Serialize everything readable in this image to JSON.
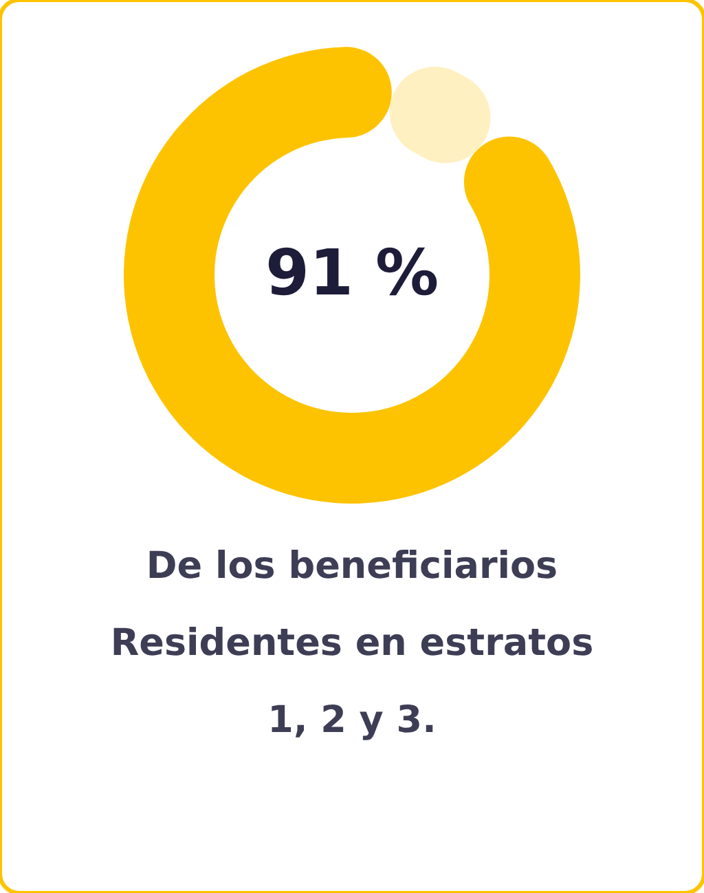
{
  "chart_data": {
    "type": "donut",
    "title": "De los beneficiarios\nResidentes en estratos\n1, 2 y 3.",
    "categories": [
      null,
      null
    ],
    "values": [
      91,
      9
    ],
    "colors": [
      "#fdc300",
      "#fff0c2"
    ],
    "value_labels": [
      "91 %",
      null
    ]
  }
}
